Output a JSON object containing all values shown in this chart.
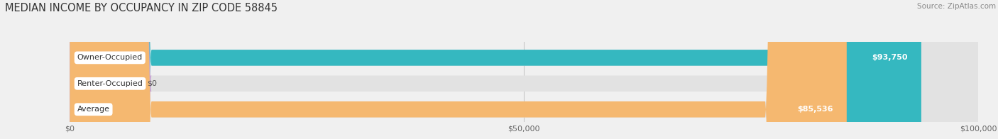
{
  "title": "MEDIAN INCOME BY OCCUPANCY IN ZIP CODE 58845",
  "source": "Source: ZipAtlas.com",
  "categories": [
    "Owner-Occupied",
    "Renter-Occupied",
    "Average"
  ],
  "values": [
    93750,
    0,
    85536
  ],
  "bar_colors": [
    "#35b8c0",
    "#c9a8d4",
    "#f5b870"
  ],
  "bar_labels": [
    "$93,750",
    "$0",
    "$85,536"
  ],
  "xlim": [
    0,
    100000
  ],
  "xtick_values": [
    0,
    50000,
    100000
  ],
  "xtick_labels": [
    "$0",
    "$50,000",
    "$100,000"
  ],
  "background_color": "#f0f0f0",
  "bar_bg_color": "#e2e2e2",
  "title_fontsize": 10.5,
  "source_fontsize": 7.5,
  "label_fontsize": 8,
  "value_fontsize": 8,
  "bar_height": 0.62,
  "rounding_size": 9000
}
